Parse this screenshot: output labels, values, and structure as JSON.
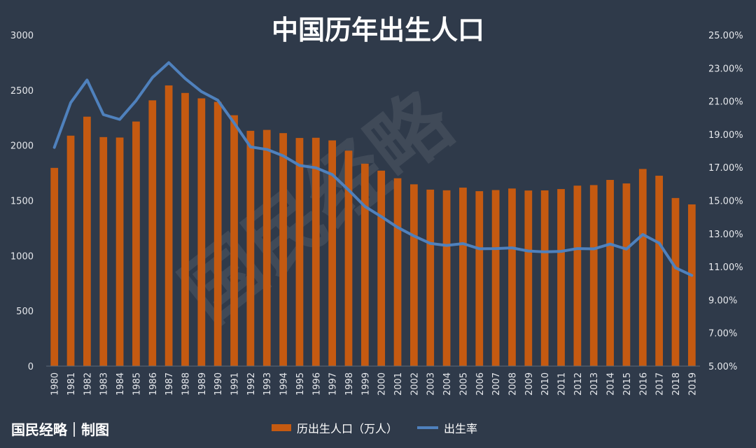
{
  "brand": {
    "text": "国民经略｜制图",
    "watermark": "国民经略"
  },
  "colors": {
    "background": "#2f3a4a",
    "bars": "#c55a11",
    "line": "#4f81bd",
    "text": "#e6e8ec"
  },
  "chart_data": {
    "type": "bar",
    "title": "中国历年出生人口",
    "categories": [
      "1980",
      "1981",
      "1982",
      "1983",
      "1984",
      "1985",
      "1986",
      "1987",
      "1988",
      "1989",
      "1990",
      "1991",
      "1992",
      "1993",
      "1994",
      "1995",
      "1996",
      "1997",
      "1998",
      "1999",
      "2000",
      "2001",
      "2002",
      "2003",
      "2004",
      "2005",
      "2006",
      "2007",
      "2008",
      "2009",
      "2010",
      "2011",
      "2012",
      "2013",
      "2014",
      "2015",
      "2016",
      "2017",
      "2018",
      "2019"
    ],
    "series": [
      {
        "name": "历出生人口（万人）",
        "type": "bar",
        "axis": "left",
        "color": "#c55a11",
        "values": [
          1796,
          2088,
          2260,
          2075,
          2071,
          2216,
          2408,
          2543,
          2475,
          2426,
          2394,
          2273,
          2132,
          2140,
          2111,
          2067,
          2069,
          2045,
          1952,
          1834,
          1771,
          1702,
          1647,
          1599,
          1593,
          1617,
          1585,
          1595,
          1609,
          1591,
          1592,
          1604,
          1635,
          1640,
          1687,
          1655,
          1786,
          1725,
          1523,
          1465
        ]
      },
      {
        "name": "出生率",
        "type": "line",
        "axis": "right",
        "color": "#4f81bd",
        "values": [
          18.21,
          20.91,
          22.28,
          20.19,
          19.9,
          21.04,
          22.43,
          23.33,
          22.37,
          21.58,
          21.06,
          19.68,
          18.24,
          18.09,
          17.7,
          17.12,
          16.98,
          16.57,
          15.64,
          14.64,
          14.03,
          13.38,
          12.86,
          12.41,
          12.29,
          12.4,
          12.09,
          12.1,
          12.14,
          11.95,
          11.9,
          11.93,
          12.1,
          12.08,
          12.37,
          12.07,
          12.95,
          12.43,
          10.94,
          10.48
        ]
      }
    ],
    "y_left": {
      "min": 0,
      "max": 3000,
      "ticks": [
        0,
        500,
        1000,
        1500,
        2000,
        2500,
        3000
      ],
      "tick_labels": [
        "0",
        "500",
        "1000",
        "1500",
        "2000",
        "2500",
        "3000"
      ]
    },
    "y_right": {
      "min": 5,
      "max": 25,
      "unit": "percent",
      "ticks": [
        5,
        7,
        9,
        11,
        13,
        15,
        17,
        19,
        21,
        23,
        25
      ],
      "tick_labels": [
        "5.00%",
        "7.00%",
        "9.00%",
        "11.00%",
        "13.00%",
        "15.00%",
        "17.00%",
        "19.00%",
        "21.00%",
        "23.00%",
        "25.00%"
      ]
    },
    "legend": {
      "position": "bottom",
      "entries": [
        "历出生人口（万人）",
        "出生率"
      ]
    },
    "grid": false
  }
}
